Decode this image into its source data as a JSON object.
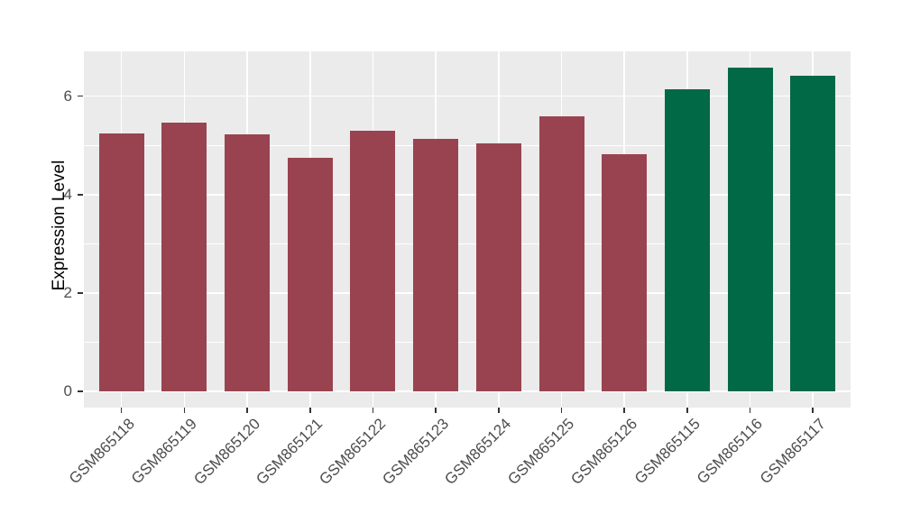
{
  "chart_data": {
    "type": "bar",
    "title": "",
    "xlabel": "",
    "ylabel": "Expression Level",
    "categories": [
      "GSM865118",
      "GSM865119",
      "GSM865120",
      "GSM865121",
      "GSM865122",
      "GSM865123",
      "GSM865124",
      "GSM865125",
      "GSM865126",
      "GSM865115",
      "GSM865116",
      "GSM865117"
    ],
    "values": [
      5.25,
      5.47,
      5.22,
      4.75,
      5.3,
      5.13,
      5.04,
      5.6,
      4.82,
      6.14,
      6.59,
      6.41
    ],
    "bar_colors": [
      "#9A4350",
      "#9A4350",
      "#9A4350",
      "#9A4350",
      "#9A4350",
      "#9A4350",
      "#9A4350",
      "#9A4350",
      "#9A4350",
      "#016946",
      "#016946",
      "#016946"
    ],
    "y_ticks": [
      0,
      2,
      4,
      6
    ],
    "y_tick_labels": [
      "0",
      "2",
      "4",
      "6"
    ],
    "y_minor_ticks": [
      1,
      3,
      5
    ],
    "ylim": [
      -0.33,
      6.912
    ],
    "grid": true,
    "legend": "none",
    "colors": {
      "group_red": "#9A4350",
      "group_green": "#016946",
      "panel_background": "#EBEBEB",
      "gridline": "#FFFFFF",
      "tick_mark": "#333333",
      "axis_text": "#4D4D4D",
      "axis_title": "#000000"
    }
  }
}
